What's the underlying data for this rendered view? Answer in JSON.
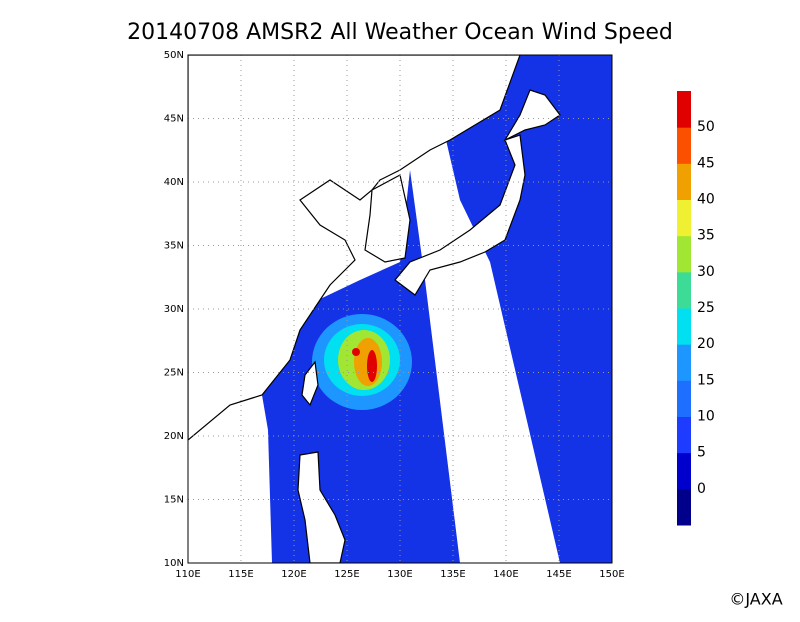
{
  "title": "20140708 AMSR2 All Weather Ocean Wind Speed",
  "map": {
    "lon_ticks": [
      "110E",
      "115E",
      "120E",
      "125E",
      "130E",
      "135E",
      "140E",
      "145E",
      "150E"
    ],
    "lat_ticks": [
      "10N",
      "15N",
      "20N",
      "25N",
      "30N",
      "35N",
      "40N",
      "45N",
      "50N"
    ]
  },
  "colorbar": {
    "labels": [
      "0",
      "5",
      "10",
      "15",
      "20",
      "25",
      "30",
      "35",
      "40",
      "45",
      "50"
    ]
  },
  "credit": "©JAXA"
}
